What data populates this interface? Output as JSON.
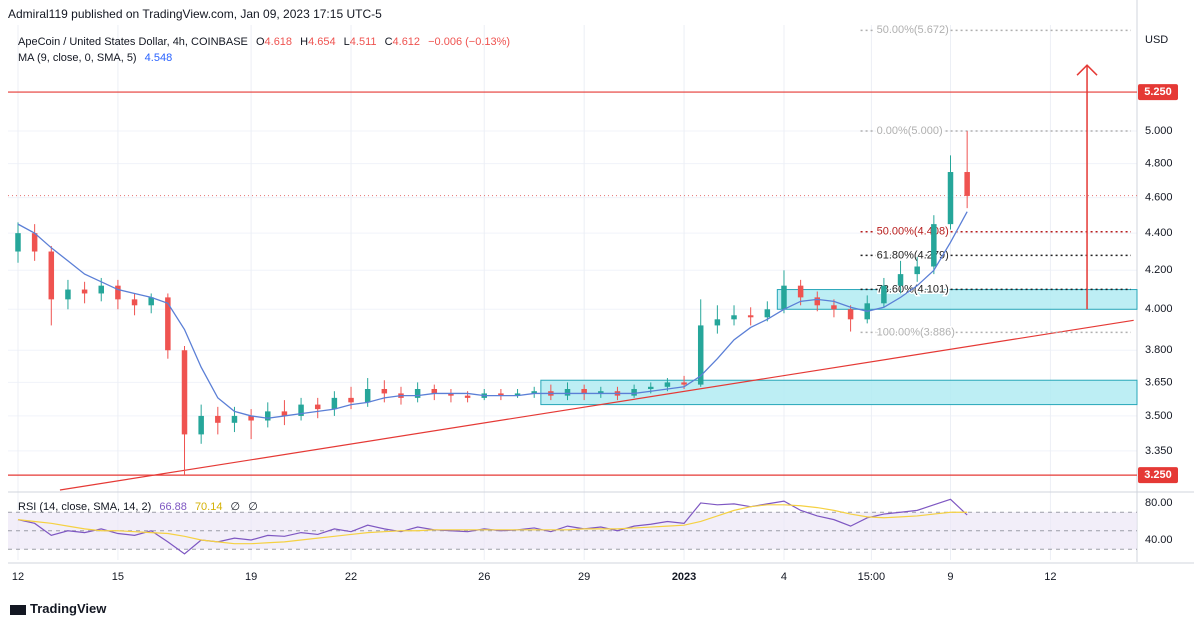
{
  "header": {
    "publisher": "Admiral119 published on TradingView.com, Jan 09, 2023 17:15 UTC-5",
    "brand": "TradingView"
  },
  "chart_data": [
    {
      "type": "candlestick",
      "title": "ApeCoin / United States Dollar, 4h, COINBASE",
      "ohlc_legend": [
        {
          "label": "O",
          "value": "4.618"
        },
        {
          "label": "H",
          "value": "4.654"
        },
        {
          "label": "L",
          "value": "4.511"
        },
        {
          "label": "C",
          "value": "4.612"
        }
      ],
      "change": "−0.006 (−0.13%)",
      "ma_legend": {
        "title": "MA (9, close, 0, SMA, 5)",
        "value": "4.548"
      },
      "unit": "USD",
      "x": [
        0,
        0.5,
        1,
        1.5,
        2,
        2.5,
        3,
        3.5,
        4,
        4.5,
        5,
        5.5,
        6,
        6.5,
        7,
        7.5,
        8,
        8.5,
        9,
        9.5,
        10,
        10.5,
        11,
        11.5,
        12,
        12.5,
        13,
        13.5,
        14,
        14.5,
        15,
        15.5,
        16,
        16.5,
        17,
        17.5,
        18,
        18.5,
        19,
        19.5,
        20,
        20.5,
        21,
        21.5,
        22,
        22.5,
        23,
        23.5,
        24,
        24.5,
        25,
        25.5,
        26,
        26.5,
        27,
        27.5,
        28,
        28.5
      ],
      "open": [
        4.3,
        4.4,
        4.3,
        4.05,
        4.1,
        4.08,
        4.12,
        4.05,
        4.02,
        4.06,
        3.8,
        3.42,
        3.5,
        3.47,
        3.5,
        3.48,
        3.52,
        3.5,
        3.55,
        3.53,
        3.58,
        3.56,
        3.62,
        3.6,
        3.58,
        3.62,
        3.6,
        3.59,
        3.58,
        3.6,
        3.59,
        3.6,
        3.61,
        3.59,
        3.62,
        3.6,
        3.61,
        3.59,
        3.62,
        3.63,
        3.65,
        3.64,
        3.92,
        3.95,
        3.97,
        3.96,
        4.0,
        4.12,
        4.06,
        4.02,
        4.0,
        3.95,
        4.03,
        4.12,
        4.18,
        4.22,
        4.45,
        4.75
      ],
      "high": [
        4.46,
        4.45,
        4.33,
        4.15,
        4.14,
        4.16,
        4.15,
        4.08,
        4.08,
        4.08,
        3.82,
        3.55,
        3.54,
        3.54,
        3.53,
        3.56,
        3.57,
        3.58,
        3.58,
        3.61,
        3.63,
        3.67,
        3.66,
        3.63,
        3.65,
        3.64,
        3.62,
        3.61,
        3.62,
        3.62,
        3.62,
        3.63,
        3.64,
        3.65,
        3.64,
        3.63,
        3.63,
        3.64,
        3.65,
        3.67,
        3.68,
        4.05,
        4.02,
        4.02,
        4.01,
        4.04,
        4.2,
        4.15,
        4.09,
        4.05,
        4.02,
        4.07,
        4.16,
        4.25,
        4.27,
        4.5,
        4.85,
        5.0
      ],
      "low": [
        4.24,
        4.25,
        3.92,
        4.0,
        4.03,
        4.04,
        4.0,
        3.97,
        3.98,
        3.76,
        3.25,
        3.38,
        3.42,
        3.43,
        3.4,
        3.45,
        3.46,
        3.48,
        3.49,
        3.5,
        3.53,
        3.54,
        3.56,
        3.55,
        3.56,
        3.57,
        3.56,
        3.56,
        3.57,
        3.57,
        3.58,
        3.58,
        3.57,
        3.57,
        3.57,
        3.58,
        3.57,
        3.58,
        3.6,
        3.61,
        3.62,
        3.63,
        3.88,
        3.92,
        3.92,
        3.94,
        3.98,
        4.02,
        3.99,
        3.96,
        3.89,
        3.93,
        4.01,
        4.08,
        4.14,
        4.18,
        4.42,
        4.54
      ],
      "close": [
        4.4,
        4.3,
        4.05,
        4.1,
        4.08,
        4.12,
        4.05,
        4.02,
        4.06,
        3.8,
        3.42,
        3.5,
        3.47,
        3.5,
        3.48,
        3.52,
        3.5,
        3.55,
        3.53,
        3.58,
        3.56,
        3.62,
        3.6,
        3.58,
        3.62,
        3.6,
        3.59,
        3.58,
        3.6,
        3.59,
        3.6,
        3.61,
        3.59,
        3.62,
        3.6,
        3.61,
        3.59,
        3.62,
        3.63,
        3.65,
        3.64,
        3.92,
        3.95,
        3.97,
        3.96,
        4.0,
        4.12,
        4.06,
        4.02,
        4.0,
        3.95,
        4.03,
        4.12,
        4.18,
        4.22,
        4.45,
        4.75,
        4.61
      ],
      "up_color": "#26a69a",
      "down_color": "#ef5350",
      "ma": {
        "color": "#5b7fd6",
        "values": [
          4.45,
          4.4,
          4.32,
          4.25,
          4.18,
          4.14,
          4.1,
          4.08,
          4.06,
          4.03,
          3.9,
          3.72,
          3.58,
          3.52,
          3.5,
          3.49,
          3.5,
          3.51,
          3.52,
          3.53,
          3.55,
          3.56,
          3.58,
          3.59,
          3.59,
          3.6,
          3.6,
          3.6,
          3.59,
          3.59,
          3.59,
          3.6,
          3.6,
          3.6,
          3.6,
          3.6,
          3.6,
          3.6,
          3.61,
          3.62,
          3.63,
          3.68,
          3.76,
          3.85,
          3.91,
          3.95,
          4.0,
          4.04,
          4.05,
          4.04,
          4.01,
          3.99,
          4.01,
          4.06,
          4.12,
          4.2,
          4.35,
          4.52
        ]
      },
      "log": true,
      "grid": true,
      "xlim": [
        -0.3,
        33.6
      ],
      "xticks": [
        {
          "value": 0,
          "label": "12"
        },
        {
          "value": 3,
          "label": "15"
        },
        {
          "value": 7,
          "label": "19"
        },
        {
          "value": 10,
          "label": "22"
        },
        {
          "value": 14,
          "label": "26"
        },
        {
          "value": 17,
          "label": "29"
        },
        {
          "value": 20,
          "label": "2023"
        },
        {
          "value": 23,
          "label": "4"
        },
        {
          "value": 25.625,
          "label": "15:00"
        },
        {
          "value": 28,
          "label": "9"
        },
        {
          "value": 31,
          "label": "12"
        }
      ],
      "ylim": [
        3.19,
        5.71
      ],
      "yticks": [
        {
          "value": 5,
          "label": "5.000"
        },
        {
          "value": 4.8,
          "label": "4.800"
        },
        {
          "value": 4.6,
          "label": "4.600"
        },
        {
          "value": 4.4,
          "label": "4.400"
        },
        {
          "value": 4.2,
          "label": "4.200"
        },
        {
          "value": 4,
          "label": "4.000"
        },
        {
          "value": 3.8,
          "label": "3.800"
        },
        {
          "value": 3.65,
          "label": "3.650"
        },
        {
          "value": 3.5,
          "label": "3.500"
        },
        {
          "value": 3.35,
          "label": "3.350"
        }
      ],
      "hlines": [
        {
          "value": 5.25,
          "label": "5.250",
          "color": "#e53935"
        },
        {
          "value": 3.25,
          "label": "3.250",
          "color": "#e53935"
        }
      ],
      "price_line": {
        "value": 4.612,
        "color": "#e57373"
      },
      "fib": [
        {
          "value": 5.672,
          "label": "50.00%(5.672)",
          "color": "#b0b0b0"
        },
        {
          "value": 5.0,
          "label": "0.00%(5.000)",
          "color": "#b0b0b0"
        },
        {
          "value": 4.408,
          "label": "50.00%(4.408)",
          "color": "#b71c1c"
        },
        {
          "value": 4.279,
          "label": "61.80%(4.279)",
          "color": "#222222"
        },
        {
          "value": 4.101,
          "label": "78.60%(4.101)",
          "color": "#222222"
        },
        {
          "value": 3.886,
          "label": "100.00%(3.886)",
          "color": "#b0b0b0"
        }
      ],
      "fib_x0": 25.3,
      "zones": [
        {
          "x0": 15.7,
          "low": 3.55,
          "high": 3.66
        },
        {
          "x0": 22.8,
          "low": 4.0,
          "high": 4.1
        }
      ],
      "zone_color": "#b2ebf2",
      "zone_border": "#26a6b8",
      "trendline": {
        "x": [
          1.26,
          33.5
        ],
        "y": [
          3.19,
          3.945
        ],
        "color": "#e53935"
      },
      "arrow": {
        "x": 32.1,
        "from": 4.0,
        "to": 5.43,
        "color": "#e53935"
      }
    },
    {
      "type": "line",
      "title": "RSI (14, close, SMA, 14, 2)",
      "legend_values": [
        "66.88",
        "70.14",
        "∅",
        "∅"
      ],
      "x": [
        0,
        0.5,
        1,
        1.5,
        2,
        2.5,
        3,
        3.5,
        4,
        4.5,
        5,
        5.5,
        6,
        6.5,
        7,
        7.5,
        8,
        8.5,
        9,
        9.5,
        10,
        10.5,
        11,
        11.5,
        12,
        12.5,
        13,
        13.5,
        14,
        14.5,
        15,
        15.5,
        16,
        16.5,
        17,
        17.5,
        18,
        18.5,
        19,
        19.5,
        20,
        20.5,
        21,
        21.5,
        22,
        22.5,
        23,
        23.5,
        24,
        24.5,
        25,
        25.5,
        26,
        26.5,
        27,
        27.5,
        28,
        28.5
      ],
      "series": [
        {
          "color": "#7e57c2",
          "values": [
            62,
            58,
            45,
            50,
            48,
            52,
            47,
            45,
            50,
            38,
            25,
            40,
            38,
            42,
            40,
            45,
            44,
            48,
            46,
            52,
            49,
            56,
            52,
            49,
            54,
            51,
            50,
            49,
            52,
            50,
            51,
            53,
            49,
            55,
            52,
            54,
            50,
            55,
            57,
            60,
            58,
            80,
            78,
            79,
            76,
            79,
            82,
            72,
            66,
            62,
            55,
            64,
            68,
            70,
            72,
            78,
            84,
            67
          ]
        },
        {
          "color": "#f5d142",
          "values": [
            62,
            60,
            58,
            55,
            52,
            50,
            50,
            49,
            48,
            47,
            44,
            40,
            38,
            36,
            36,
            37,
            38,
            40,
            42,
            44,
            46,
            48,
            49,
            50,
            50,
            51,
            51,
            51,
            51,
            51,
            51,
            51,
            51,
            51,
            52,
            52,
            52,
            53,
            54,
            55,
            56,
            60,
            66,
            72,
            76,
            78,
            78,
            77,
            75,
            72,
            68,
            65,
            64,
            65,
            66,
            68,
            70,
            70
          ]
        }
      ],
      "xlim": [
        -0.3,
        33.6
      ],
      "ylim": [
        18.4,
        88.6
      ],
      "yticks": [
        {
          "value": 80,
          "label": "80.00"
        },
        {
          "value": 40,
          "label": "40.00"
        }
      ],
      "band": [
        70,
        30
      ],
      "midline": 50,
      "band_color": "#ede7f6"
    }
  ]
}
